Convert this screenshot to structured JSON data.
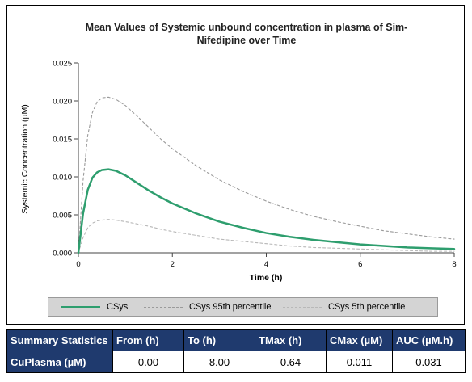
{
  "chart_data": {
    "type": "line",
    "title": "Mean Values of Systemic unbound  concentration  in plasma of Sim-Nifedipine over Time",
    "title_lines": [
      "Mean Values of Systemic unbound  concentration  in plasma of Sim-",
      "Nifedipine over Time"
    ],
    "xlabel": "Time (h)",
    "ylabel": "Systemic Concentration (µM)",
    "xlim": [
      0,
      8
    ],
    "ylim": [
      0,
      0.025
    ],
    "xticks": [
      0,
      2,
      4,
      6,
      8
    ],
    "xtick_labels": [
      "0",
      "2",
      "4",
      "6",
      "8"
    ],
    "yticks": [
      0,
      0.005,
      0.01,
      0.015,
      0.02,
      0.025
    ],
    "ytick_labels": [
      "0.000",
      "0.005",
      "0.010",
      "0.015",
      "0.020",
      "0.025"
    ],
    "grid": false,
    "legend_position": "bottom",
    "x": [
      0,
      0.1,
      0.2,
      0.3,
      0.4,
      0.5,
      0.64,
      0.8,
      1.0,
      1.25,
      1.5,
      1.75,
      2.0,
      2.5,
      3.0,
      3.5,
      4.0,
      4.5,
      5.0,
      5.5,
      6.0,
      6.5,
      7.0,
      7.5,
      8.0
    ],
    "series": [
      {
        "name": "CSys",
        "color": "#2e9e6e",
        "style": "solid",
        "values": [
          0,
          0.0052,
          0.0083,
          0.0099,
          0.0106,
          0.0109,
          0.011,
          0.0108,
          0.0102,
          0.0092,
          0.0082,
          0.0073,
          0.0065,
          0.0052,
          0.0041,
          0.0033,
          0.0026,
          0.0021,
          0.0017,
          0.0014,
          0.0011,
          0.0009,
          0.0007,
          0.0006,
          0.0005
        ]
      },
      {
        "name": "CSys 95th percentile",
        "color": "#9a9a9a",
        "style": "dashed",
        "values": [
          0,
          0.0095,
          0.0155,
          0.0185,
          0.0199,
          0.0204,
          0.0205,
          0.0202,
          0.0194,
          0.018,
          0.0165,
          0.015,
          0.0137,
          0.0115,
          0.0096,
          0.0081,
          0.0068,
          0.0057,
          0.0048,
          0.0041,
          0.0035,
          0.0029,
          0.0025,
          0.0021,
          0.0018
        ]
      },
      {
        "name": "CSys 5th percentile",
        "color": "#b8b8b8",
        "style": "dashed",
        "values": [
          0,
          0.002,
          0.0033,
          0.0039,
          0.0042,
          0.0043,
          0.0044,
          0.0043,
          0.0041,
          0.0038,
          0.0035,
          0.0031,
          0.0028,
          0.0023,
          0.0018,
          0.0015,
          0.0012,
          0.0009,
          0.0007,
          0.0006,
          0.0005,
          0.0004,
          0.0003,
          0.0002,
          0.0002
        ]
      }
    ]
  },
  "table": {
    "headers": [
      "Summary Statistics",
      "From (h)",
      "To (h)",
      "TMax (h)",
      "CMax (µM)",
      "AUC (µM.h)"
    ],
    "row": {
      "label": "CuPlasma (µM)",
      "from": "0.00",
      "to": "8.00",
      "tmax": "0.64",
      "cmax": "0.011",
      "auc": "0.031"
    },
    "header_color": "#1f3a6e"
  }
}
